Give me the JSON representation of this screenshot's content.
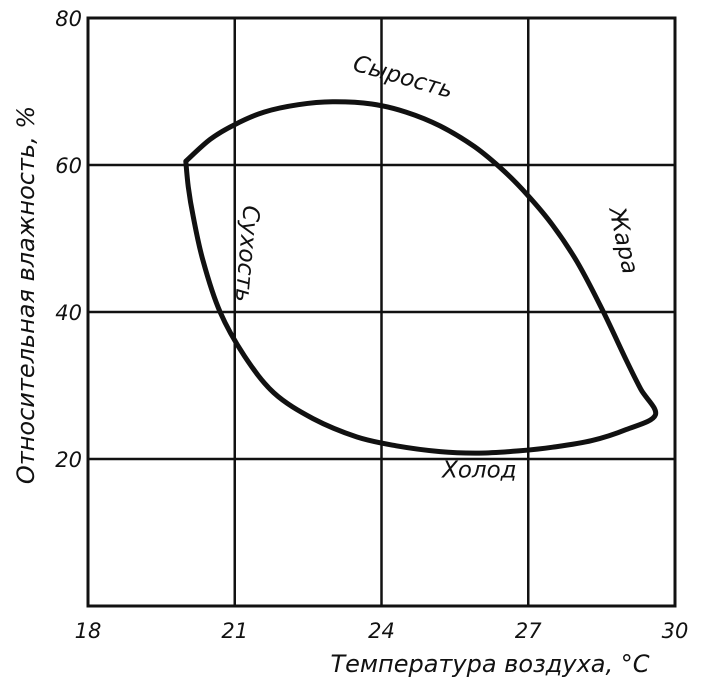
{
  "chart_data": {
    "type": "line",
    "title": "",
    "xlabel": "Температура воздуха, °С",
    "ylabel": "Относительная влажность, %",
    "xlim": [
      18,
      30
    ],
    "ylim": [
      0,
      80
    ],
    "xticks": [
      18,
      21,
      24,
      27,
      30
    ],
    "yticks": [
      20,
      40,
      60,
      80
    ],
    "xtick_labels": [
      "18",
      "21",
      "24",
      "27",
      "30"
    ],
    "ytick_labels": [
      "20",
      "40",
      "60",
      "80"
    ],
    "grid": true,
    "series": [
      {
        "closed": true,
        "points": [
          [
            20.0,
            60.5
          ],
          [
            20.5,
            63.5
          ],
          [
            21.0,
            65.5
          ],
          [
            21.6,
            67.2
          ],
          [
            22.3,
            68.2
          ],
          [
            23.0,
            68.6
          ],
          [
            23.8,
            68.3
          ],
          [
            24.5,
            67.2
          ],
          [
            25.2,
            65.3
          ],
          [
            25.9,
            62.5
          ],
          [
            26.5,
            59.2
          ],
          [
            27.0,
            55.8
          ],
          [
            27.5,
            51.8
          ],
          [
            28.0,
            46.8
          ],
          [
            28.5,
            40.5
          ],
          [
            29.0,
            33.5
          ],
          [
            29.3,
            29.5
          ],
          [
            29.6,
            26.0
          ],
          [
            29.0,
            24.0
          ],
          [
            28.3,
            22.5
          ],
          [
            27.5,
            21.6
          ],
          [
            26.8,
            21.1
          ],
          [
            26.0,
            20.8
          ],
          [
            25.2,
            21.0
          ],
          [
            24.3,
            21.8
          ],
          [
            23.5,
            23.0
          ],
          [
            22.6,
            25.5
          ],
          [
            21.8,
            29.0
          ],
          [
            21.2,
            34.0
          ],
          [
            20.7,
            40.0
          ],
          [
            20.35,
            47.0
          ],
          [
            20.15,
            53.0
          ],
          [
            20.05,
            57.0
          ],
          [
            20.0,
            60.5
          ]
        ]
      }
    ],
    "annotations": [
      {
        "text": "Сырость",
        "x": 24.4,
        "y": 71.0,
        "rotate": 16
      },
      {
        "text": "Жара",
        "x": 28.8,
        "y": 49.5,
        "rotate": 78
      },
      {
        "text": "Сухость",
        "x": 21.1,
        "y": 48.0,
        "rotate": 95
      },
      {
        "text": "Холод",
        "x": 26.0,
        "y": 17.5,
        "rotate": 0
      }
    ]
  }
}
